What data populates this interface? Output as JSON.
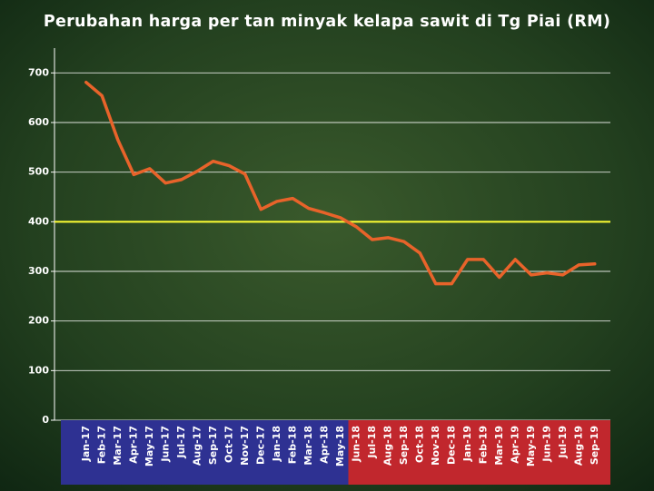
{
  "chart_data": {
    "type": "line",
    "title": "Perubahan harga per tan minyak kelapa sawit di Tg Piai (RM)",
    "categories": [
      "Jan-17",
      "Feb-17",
      "Mar-17",
      "Apr-17",
      "May-17",
      "Jun-17",
      "Jul-17",
      "Aug-17",
      "Sep-17",
      "Oct-17",
      "Nov-17",
      "Dec-17",
      "Jan-18",
      "Feb-18",
      "Mar-18",
      "Apr-18",
      "May-18",
      "Jun-18",
      "Jul-18",
      "Aug-18",
      "Sep-18",
      "Oct-18",
      "Nov-18",
      "Dec-18",
      "Jan-19",
      "Feb-19",
      "Mar-19",
      "Apr-19",
      "May-19",
      "Jun-19",
      "Jul-19",
      "Aug-19",
      "Sep-19"
    ],
    "category_colors": [
      "#2e3192",
      "#2e3192",
      "#2e3192",
      "#2e3192",
      "#2e3192",
      "#2e3192",
      "#2e3192",
      "#2e3192",
      "#2e3192",
      "#2e3192",
      "#2e3192",
      "#2e3192",
      "#2e3192",
      "#2e3192",
      "#2e3192",
      "#2e3192",
      "#2e3192",
      "#c1272d",
      "#c1272d",
      "#c1272d",
      "#c1272d",
      "#c1272d",
      "#c1272d",
      "#c1272d",
      "#c1272d",
      "#c1272d",
      "#c1272d",
      "#c1272d",
      "#c1272d",
      "#c1272d",
      "#c1272d",
      "#c1272d",
      "#c1272d"
    ],
    "series": [
      {
        "color": "#e8632a",
        "values": [
          681,
          654,
          565,
          495,
          507,
          478,
          485,
          502,
          522,
          513,
          496,
          425,
          441,
          447,
          427,
          418,
          408,
          390,
          364,
          368,
          360,
          337,
          275,
          275,
          324,
          324,
          288,
          324,
          293,
          297,
          293,
          313,
          315
        ]
      }
    ],
    "reference_line": {
      "value": 400,
      "color": "#ffff33"
    },
    "ylim": [
      0,
      750
    ],
    "yticks": [
      0,
      100,
      200,
      300,
      400,
      500,
      600,
      700
    ],
    "grid": true
  }
}
